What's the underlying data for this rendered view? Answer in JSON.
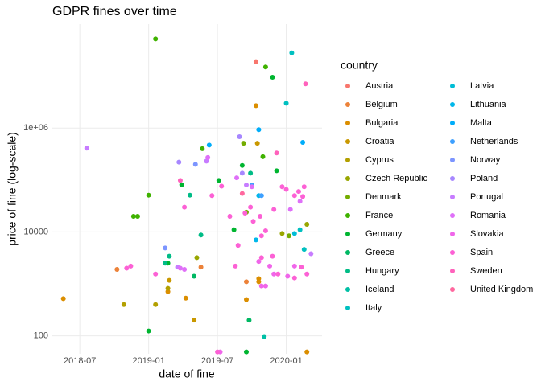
{
  "chart_data": {
    "type": "scatter",
    "title": "GDPR fines over time",
    "x_label": "date of fine",
    "y_label": "price of fine (log-scale)",
    "legend_title": "country",
    "log_scale_y": true,
    "grid": true,
    "legend_position": "right",
    "xlim": [
      2018.3,
      2020.26
    ],
    "ylim": [
      45,
      100000000
    ],
    "xticks": [
      {
        "value": 2018.5,
        "label": "2018-07"
      },
      {
        "value": 2019.0,
        "label": "2019-01"
      },
      {
        "value": 2019.5,
        "label": "2019-07"
      },
      {
        "value": 2020.0,
        "label": "2020-01"
      }
    ],
    "yticks": [
      100,
      10000,
      {
        "value": 1000000,
        "label": "1e+06"
      }
    ],
    "series": [
      {
        "name": "Austria",
        "color": "#F8766D",
        "x": [
          2019.78
        ],
        "values": [
          19000000
        ]
      },
      {
        "name": "Belgium",
        "color": "#EC8239",
        "x": [
          2018.77,
          2019.38,
          2019.71
        ],
        "values": [
          1900,
          2100,
          1100
        ]
      },
      {
        "name": "Bulgaria",
        "color": "#DB8E00",
        "x": [
          2018.38,
          2019.78,
          2019.14,
          2019.8,
          2019.8,
          2019.71,
          2020.15,
          2019.27
        ],
        "values": [
          520,
          2700000,
          710,
          1260,
          1100,
          500,
          49,
          530
        ]
      },
      {
        "name": "Croatia",
        "color": "#C99800",
        "x": [
          2019.33,
          2019.15,
          2019.79
        ],
        "values": [
          200,
          1170,
          510000
        ]
      },
      {
        "name": "Cyprus",
        "color": "#B3A000",
        "x": [
          2019.05,
          2018.82,
          2019.14
        ],
        "values": [
          400,
          400,
          820
        ]
      },
      {
        "name": "Czech Republic",
        "color": "#98A600",
        "x": [
          2019.35,
          2019.97,
          2020.15
        ],
        "values": [
          3200,
          9300,
          14000
        ]
      },
      {
        "name": "Denmark",
        "color": "#74AC00",
        "x": [
          2019.69,
          2020.02,
          2019.71
        ],
        "values": [
          510000,
          8400,
          24000
        ]
      },
      {
        "name": "France",
        "color": "#3FB200",
        "x": [
          2019.05,
          2018.89,
          2018.92,
          2019.0,
          2019.39,
          2019.85,
          2019.83
        ],
        "values": [
          52000000,
          20000,
          20000,
          51000,
          400000,
          15000000,
          280000
        ]
      },
      {
        "name": "Germany",
        "color": "#00B530",
        "x": [
          2019.0,
          2019.14,
          2019.24,
          2019.51,
          2019.68,
          2019.9,
          2019.93,
          2019.71,
          2019.62
        ],
        "values": [
          124,
          2500,
          81000,
          98000,
          190000,
          9500000,
          150000,
          49,
          11000
        ]
      },
      {
        "name": "Greece",
        "color": "#00B863",
        "x": [
          2019.33,
          2019.73
        ],
        "values": [
          1400,
          200
        ]
      },
      {
        "name": "Hungary",
        "color": "#00BC86",
        "x": [
          2019.12,
          2019.15,
          2019.38,
          2019.3,
          2019.74
        ],
        "values": [
          2500,
          3400,
          8700,
          51000,
          135000
        ]
      },
      {
        "name": "Iceland",
        "color": "#00BFA5",
        "x": [
          2019.84
        ],
        "values": [
          97
        ]
      },
      {
        "name": "Italy",
        "color": "#00C0C0",
        "x": [
          2020.04,
          2020.0,
          2020.13,
          2020.1
        ],
        "values": [
          28000000,
          3000000,
          4600,
          11000
        ]
      },
      {
        "name": "Latvia",
        "color": "#00BDD6",
        "x": [
          2020.06
        ],
        "values": [
          9300
        ]
      },
      {
        "name": "Lithuania",
        "color": "#00B7EA",
        "x": [
          2019.8,
          2019.78
        ],
        "values": [
          50000,
          7000
        ]
      },
      {
        "name": "Malta",
        "color": "#00ADFA",
        "x": [
          2019.8,
          2020.12,
          2019.44
        ],
        "values": [
          930000,
          530000,
          470000
        ]
      },
      {
        "name": "Netherlands",
        "color": "#3DA0FF",
        "x": [
          2019.82,
          2019.75
        ],
        "values": [
          50000,
          80000
        ]
      },
      {
        "name": "Norway",
        "color": "#7C95FF",
        "x": [
          2019.34,
          2019.12
        ],
        "values": [
          200000,
          4900
        ]
      },
      {
        "name": "Poland",
        "color": "#A787FF",
        "x": [
          2019.66,
          2019.22,
          2019.68
        ],
        "values": [
          680000,
          220000,
          135000
        ]
      },
      {
        "name": "Portugal",
        "color": "#C77CFF",
        "x": [
          2018.55,
          2019.21,
          2019.42,
          2019.71,
          2020.18
        ],
        "values": [
          410000,
          2100,
          230000,
          80000,
          3800
        ]
      },
      {
        "name": "Romania",
        "color": "#DF70F8",
        "x": [
          2019.26,
          2019.23,
          2019.43,
          2019.64,
          2019.75,
          2020.03,
          2020.1
        ],
        "values": [
          1900,
          2000,
          270000,
          110000,
          74000,
          27000,
          39000
        ]
      },
      {
        "name": "Slovakia",
        "color": "#F066EA",
        "x": [
          2019.88,
          2019.91,
          2020.01,
          2020.06,
          2019.85,
          2019.82,
          2019.8,
          2019.52
        ],
        "values": [
          2200,
          1550,
          1400,
          2200,
          910,
          910,
          2700,
          49
        ]
      },
      {
        "name": "Spain",
        "color": "#FC61D5",
        "x": [
          2018.84,
          2018.87,
          2019.05,
          2019.26,
          2019.46,
          2019.53,
          2019.59,
          2019.7,
          2019.74,
          2019.76,
          2019.82,
          2019.82,
          2019.9,
          2019.94,
          2019.97,
          2020.0,
          2020.09,
          2020.12,
          2020.13,
          2020.06,
          2020.15,
          2019.91,
          2019.81,
          2019.85,
          2019.63,
          2019.65,
          2020.06,
          2020.11,
          2019.5
        ],
        "values": [
          2000,
          2200,
          1550,
          30000,
          50000,
          76000,
          20000,
          23000,
          30000,
          16000,
          8400,
          3200,
          3400,
          1550,
          74000,
          66000,
          60000,
          48000,
          74000,
          50000,
          1550,
          27000,
          20000,
          10500,
          2200,
          5500,
          1300,
          2100,
          49
        ]
      },
      {
        "name": "Sweden",
        "color": "#FF62BC",
        "x": [
          2020.14,
          2019.93,
          2019.23
        ],
        "values": [
          7100000,
          330000,
          98000
        ]
      },
      {
        "name": "United Kingdom",
        "color": "#FF689F",
        "x": [
          2019.68
        ],
        "values": [
          55000
        ]
      }
    ]
  }
}
